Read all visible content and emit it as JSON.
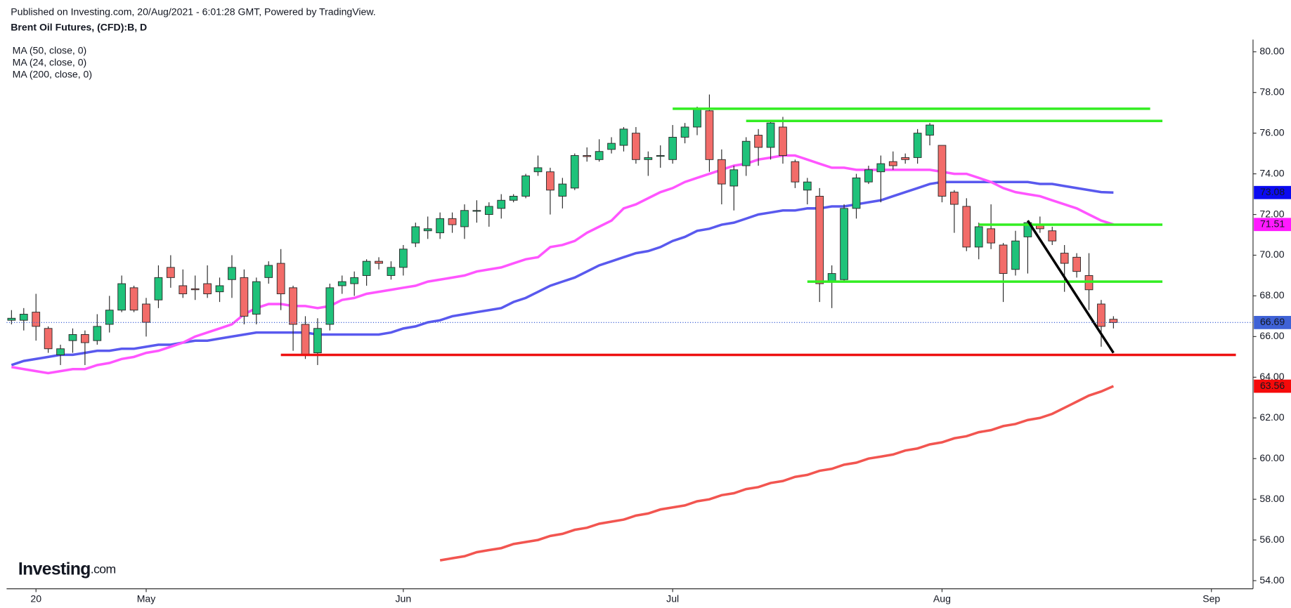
{
  "chart_data": {
    "type": "candlestick",
    "header": "Published on Investing.com, 20/Aug/2021 - 6:01:28 GMT, Powered by TradingView.",
    "title": "Brent Oil Futures, (CFD):B, D",
    "logo": {
      "name": "Investing",
      "suffix": ".com"
    },
    "up_color": "#1fc27a",
    "down_color": "#f26c69",
    "open": [
      66.8,
      66.8,
      67.2,
      66.4,
      65.1,
      65.8,
      66.1,
      65.8,
      66.6,
      67.3,
      68.4,
      67.6,
      67.8,
      69.4,
      68.5,
      68.35,
      68.6,
      68.2,
      68.8,
      68.9,
      67.1,
      68.9,
      69.6,
      68.4,
      66.6,
      65.2,
      66.6,
      68.5,
      68.6,
      69.0,
      69.7,
      69.0,
      69.4,
      70.6,
      71.2,
      71.1,
      71.8,
      71.4,
      72.2,
      72.0,
      72.3,
      72.7,
      72.9,
      74.1,
      74.1,
      72.9,
      73.3,
      74.9,
      74.7,
      75.2,
      75.4,
      76.0,
      74.7,
      74.9,
      74.7,
      75.8,
      76.3,
      77.1,
      74.7,
      73.4,
      74.4,
      75.9,
      75.3,
      76.3,
      74.6,
      73.2,
      72.9,
      68.7,
      68.8,
      72.3,
      73.6,
      74.1,
      74.6,
      74.8,
      74.8,
      75.9,
      75.4,
      73.1,
      72.4,
      70.4,
      71.3,
      70.5,
      69.3,
      70.9,
      71.5,
      71.2,
      70.1,
      69.9,
      69.0,
      67.6,
      66.85
    ],
    "high": [
      67.3,
      67.4,
      68.1,
      66.5,
      65.6,
      66.4,
      66.3,
      67.1,
      68.0,
      69.0,
      68.5,
      67.9,
      69.5,
      70.0,
      69.3,
      69.0,
      69.5,
      68.9,
      70.0,
      69.3,
      68.9,
      69.7,
      70.3,
      68.5,
      67.0,
      66.9,
      68.6,
      69.0,
      69.2,
      69.8,
      69.9,
      69.7,
      70.5,
      71.6,
      71.9,
      72.1,
      72.1,
      72.5,
      72.7,
      72.6,
      73.0,
      73.0,
      74.0,
      74.9,
      74.3,
      73.8,
      75.0,
      75.3,
      75.7,
      75.8,
      76.3,
      76.3,
      75.1,
      75.4,
      76.4,
      76.5,
      77.3,
      77.9,
      75.2,
      74.4,
      75.8,
      76.2,
      76.6,
      76.8,
      74.7,
      73.8,
      73.3,
      69.5,
      72.5,
      74.0,
      74.4,
      74.9,
      75.1,
      75.0,
      76.2,
      76.5,
      75.4,
      73.2,
      72.8,
      71.6,
      72.5,
      70.6,
      71.2,
      71.7,
      71.9,
      71.4,
      70.5,
      70.1,
      70.1,
      67.8,
      67.0
    ],
    "low": [
      66.6,
      66.3,
      65.8,
      65.2,
      64.6,
      65.2,
      64.6,
      65.6,
      66.2,
      67.2,
      67.2,
      66.0,
      67.4,
      68.4,
      67.9,
      67.8,
      67.9,
      67.7,
      67.9,
      66.6,
      66.6,
      68.6,
      67.3,
      65.3,
      64.9,
      64.6,
      66.3,
      68.1,
      68.0,
      68.5,
      69.3,
      68.8,
      69.0,
      70.4,
      70.8,
      70.8,
      71.1,
      70.8,
      71.6,
      71.4,
      71.8,
      72.6,
      72.8,
      73.9,
      72.0,
      72.3,
      73.2,
      74.6,
      74.6,
      75.0,
      75.1,
      74.5,
      73.9,
      74.3,
      74.5,
      75.5,
      75.9,
      74.1,
      72.5,
      72.2,
      73.9,
      74.4,
      74.7,
      74.5,
      73.3,
      72.5,
      67.7,
      67.4,
      68.7,
      71.8,
      73.5,
      72.6,
      74.2,
      74.5,
      74.5,
      75.4,
      72.6,
      71.1,
      70.2,
      69.8,
      70.3,
      67.7,
      69.0,
      69.1,
      71.1,
      70.5,
      68.2,
      68.9,
      67.3,
      65.5,
      66.4
    ],
    "close": [
      66.9,
      67.1,
      66.5,
      65.4,
      65.4,
      66.1,
      65.7,
      66.5,
      67.3,
      68.6,
      67.3,
      66.7,
      68.9,
      68.9,
      68.1,
      68.3,
      68.1,
      68.5,
      69.4,
      67.0,
      68.7,
      69.5,
      68.1,
      66.6,
      65.1,
      66.4,
      68.4,
      68.7,
      68.9,
      69.7,
      69.6,
      69.4,
      70.3,
      71.4,
      71.3,
      71.8,
      71.5,
      72.2,
      72.2,
      72.4,
      72.7,
      72.9,
      73.9,
      74.3,
      73.2,
      73.5,
      74.9,
      74.85,
      75.1,
      75.5,
      76.2,
      74.7,
      74.8,
      74.9,
      75.8,
      76.3,
      77.2,
      74.7,
      73.5,
      74.2,
      75.6,
      75.3,
      76.5,
      74.9,
      73.6,
      73.6,
      68.6,
      69.1,
      72.3,
      73.8,
      74.2,
      74.5,
      74.4,
      74.7,
      76.0,
      76.4,
      72.9,
      72.5,
      70.4,
      71.4,
      70.6,
      69.1,
      70.7,
      71.6,
      71.3,
      70.7,
      69.6,
      69.2,
      68.3,
      66.5,
      66.69
    ],
    "price_color": "#3f62d6",
    "series": [
      {
        "name": "MA (50, close, 0)",
        "color": "#5959ee",
        "tag_color": "#0a0af0",
        "values": [
          64.6,
          64.8,
          64.9,
          65.0,
          65.1,
          65.1,
          65.2,
          65.3,
          65.3,
          65.4,
          65.4,
          65.5,
          65.6,
          65.6,
          65.7,
          65.8,
          65.8,
          65.9,
          66.0,
          66.1,
          66.2,
          66.2,
          66.2,
          66.2,
          66.2,
          66.1,
          66.1,
          66.1,
          66.1,
          66.1,
          66.1,
          66.2,
          66.4,
          66.5,
          66.7,
          66.8,
          67.0,
          67.1,
          67.2,
          67.3,
          67.4,
          67.7,
          67.9,
          68.2,
          68.5,
          68.7,
          68.9,
          69.2,
          69.5,
          69.7,
          69.9,
          70.1,
          70.2,
          70.4,
          70.7,
          70.9,
          71.2,
          71.3,
          71.5,
          71.6,
          71.8,
          72.0,
          72.1,
          72.2,
          72.2,
          72.3,
          72.3,
          72.4,
          72.4,
          72.5,
          72.6,
          72.7,
          72.9,
          73.1,
          73.3,
          73.5,
          73.6,
          73.6,
          73.6,
          73.6,
          73.6,
          73.6,
          73.6,
          73.6,
          73.5,
          73.5,
          73.4,
          73.3,
          73.2,
          73.1,
          73.08
        ]
      },
      {
        "name": "MA (24, close, 0)",
        "color": "#ff55ff",
        "tag_color": "#ff1aff",
        "values": [
          64.5,
          64.4,
          64.3,
          64.2,
          64.3,
          64.4,
          64.4,
          64.6,
          64.7,
          64.9,
          65.0,
          65.2,
          65.3,
          65.5,
          65.7,
          66.0,
          66.2,
          66.4,
          66.6,
          67.1,
          67.4,
          67.6,
          67.6,
          67.5,
          67.5,
          67.4,
          67.5,
          67.8,
          67.9,
          68.1,
          68.2,
          68.3,
          68.4,
          68.5,
          68.7,
          68.8,
          68.9,
          69.0,
          69.2,
          69.3,
          69.4,
          69.6,
          69.8,
          69.9,
          70.4,
          70.5,
          70.7,
          71.1,
          71.4,
          71.7,
          72.3,
          72.5,
          72.8,
          73.1,
          73.3,
          73.6,
          73.8,
          74.0,
          74.2,
          74.4,
          74.5,
          74.7,
          74.8,
          74.9,
          74.9,
          74.7,
          74.5,
          74.3,
          74.3,
          74.2,
          74.2,
          74.2,
          74.2,
          74.2,
          74.2,
          74.2,
          74.1,
          74.0,
          74.0,
          73.8,
          73.6,
          73.3,
          73.1,
          73.0,
          72.9,
          72.7,
          72.5,
          72.3,
          72.0,
          71.7,
          71.51
        ]
      },
      {
        "name": "MA (200, close, 0)",
        "color": "#f25550",
        "tag_color": "#f50a0a",
        "values": [
          null,
          null,
          null,
          null,
          null,
          null,
          null,
          null,
          null,
          null,
          null,
          null,
          null,
          null,
          null,
          null,
          null,
          null,
          null,
          null,
          null,
          null,
          null,
          null,
          null,
          null,
          null,
          null,
          null,
          null,
          null,
          null,
          null,
          null,
          null,
          55.0,
          55.1,
          55.2,
          55.4,
          55.5,
          55.6,
          55.8,
          55.9,
          56.0,
          56.2,
          56.3,
          56.5,
          56.6,
          56.8,
          56.9,
          57.0,
          57.2,
          57.3,
          57.5,
          57.6,
          57.7,
          57.9,
          58.0,
          58.2,
          58.3,
          58.5,
          58.6,
          58.8,
          58.9,
          59.1,
          59.2,
          59.4,
          59.5,
          59.7,
          59.8,
          60.0,
          60.1,
          60.2,
          60.4,
          60.5,
          60.7,
          60.8,
          61.0,
          61.1,
          61.3,
          61.4,
          61.6,
          61.7,
          61.9,
          62.0,
          62.2,
          62.5,
          62.8,
          63.1,
          63.3,
          63.56
        ]
      }
    ],
    "levels": [
      {
        "value": 77.2,
        "from": 54,
        "to": 93,
        "color": "#33ee22"
      },
      {
        "value": 76.6,
        "from": 60,
        "to": 94,
        "color": "#33ee22"
      },
      {
        "value": 71.5,
        "from": 79,
        "to": 94,
        "color": "#33ee22"
      },
      {
        "value": 68.7,
        "from": 65,
        "to": 94,
        "color": "#33ee22"
      },
      {
        "value": 65.1,
        "from": 22,
        "to": 100,
        "color": "#ee1111"
      }
    ],
    "trendline": {
      "x": [
        83,
        90
      ],
      "y": [
        71.7,
        65.2
      ],
      "color": "#000000"
    },
    "ylim": [
      53.6,
      80.6
    ],
    "yticks": [
      {
        "value": 54,
        "label": "54.00"
      },
      {
        "value": 56,
        "label": "56.00"
      },
      {
        "value": 58,
        "label": "58.00"
      },
      {
        "value": 60,
        "label": "60.00"
      },
      {
        "value": 62,
        "label": "62.00"
      },
      {
        "value": 64,
        "label": "64.00"
      },
      {
        "value": 66,
        "label": "66.00"
      },
      {
        "value": 68,
        "label": "68.00"
      },
      {
        "value": 70,
        "label": "70.00"
      },
      {
        "value": 72,
        "label": "72.00"
      },
      {
        "value": 74,
        "label": "74.00"
      },
      {
        "value": 76,
        "label": "76.00"
      },
      {
        "value": 78,
        "label": "78.00"
      },
      {
        "value": 80,
        "label": "80.00"
      }
    ],
    "xlim": [
      -0.4,
      101.4
    ],
    "xticks": [
      {
        "value": 2,
        "label": "20"
      },
      {
        "value": 11,
        "label": "May"
      },
      {
        "value": 32,
        "label": "Jun"
      },
      {
        "value": 54,
        "label": "Jul"
      },
      {
        "value": 76,
        "label": "Aug"
      },
      {
        "value": 98,
        "label": "Sep"
      }
    ]
  }
}
